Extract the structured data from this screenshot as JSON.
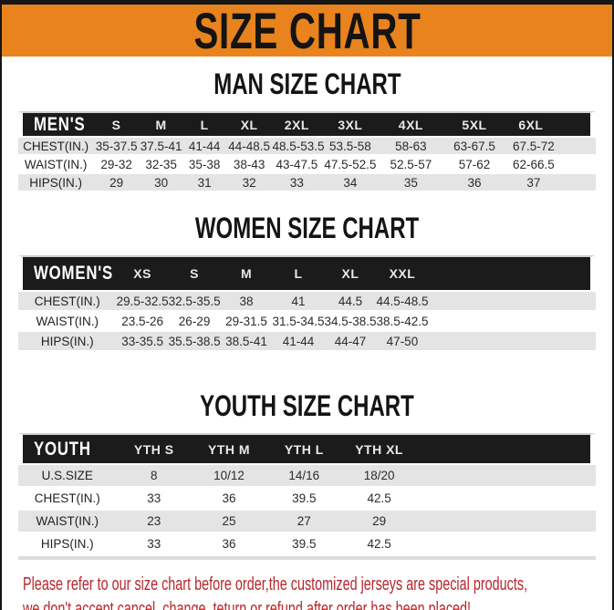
{
  "banner": {
    "title": "SIZE CHART",
    "bg_color": "#E8831E",
    "text_color": "#141414"
  },
  "chart_data": [
    {
      "type": "table",
      "title": "MAN SIZE CHART",
      "corner_label": "MEN'S",
      "columns": [
        "S",
        "M",
        "L",
        "XL",
        "2XL",
        "3XL",
        "4XL",
        "5XL",
        "6XL"
      ],
      "rows": [
        {
          "label": "CHEST(IN.)",
          "values": [
            "35-37.5",
            "37.5-41",
            "41-44",
            "44-48.5",
            "48.5-53.5",
            "53.5-58",
            "58-63",
            "63-67.5",
            "67.5-72"
          ]
        },
        {
          "label": "WAIST(IN.)",
          "values": [
            "29-32",
            "32-35",
            "35-38",
            "38-43",
            "43-47.5",
            "47.5-52.5",
            "52.5-57",
            "57-62",
            "62-66.5"
          ]
        },
        {
          "label": "HIPS(IN.)",
          "values": [
            "29",
            "30",
            "31",
            "32",
            "33",
            "34",
            "35",
            "36",
            "37"
          ]
        }
      ]
    },
    {
      "type": "table",
      "title": "WOMEN SIZE CHART",
      "corner_label": "WOMEN'S",
      "columns": [
        "XS",
        "S",
        "M",
        "L",
        "XL",
        "XXL"
      ],
      "rows": [
        {
          "label": "CHEST(IN.)",
          "values": [
            "29.5-32.5",
            "32.5-35.5",
            "38",
            "41",
            "44.5",
            "44.5-48.5"
          ]
        },
        {
          "label": "WAIST(IN.)",
          "values": [
            "23.5-26",
            "26-29",
            "29-31.5",
            "31.5-34.5",
            "34.5-38.5",
            "38.5-42.5"
          ]
        },
        {
          "label": "HIPS(IN.)",
          "values": [
            "33-35.5",
            "35.5-38.5",
            "38.5-41",
            "41-44",
            "44-47",
            "47-50"
          ]
        }
      ]
    },
    {
      "type": "table",
      "title": "YOUTH SIZE CHART",
      "corner_label": "YOUTH",
      "columns": [
        "YTH S",
        "YTH M",
        "YTH L",
        "YTH XL"
      ],
      "rows": [
        {
          "label": "U.S.SIZE",
          "values": [
            "8",
            "10/12",
            "14/16",
            "18/20"
          ]
        },
        {
          "label": "CHEST(IN.)",
          "values": [
            "33",
            "36",
            "39.5",
            "42.5"
          ]
        },
        {
          "label": "WAIST(IN.)",
          "values": [
            "23",
            "25",
            "27",
            "29"
          ]
        },
        {
          "label": "HIPS(IN.)",
          "values": [
            "33",
            "36",
            "39.5",
            "42.5"
          ]
        }
      ]
    }
  ],
  "table_style": {
    "header_bg": "#1B1B1B",
    "stripe_gray": "#E4E4E4",
    "stripe_white": "#FFFFFF"
  },
  "footer": {
    "line1": "Please refer to our size chart before order,the customized jerseys are special products,",
    "line2": "we don't accept cancel, change, teturn or refund after order has been placed!",
    "color": "#B7262B"
  }
}
